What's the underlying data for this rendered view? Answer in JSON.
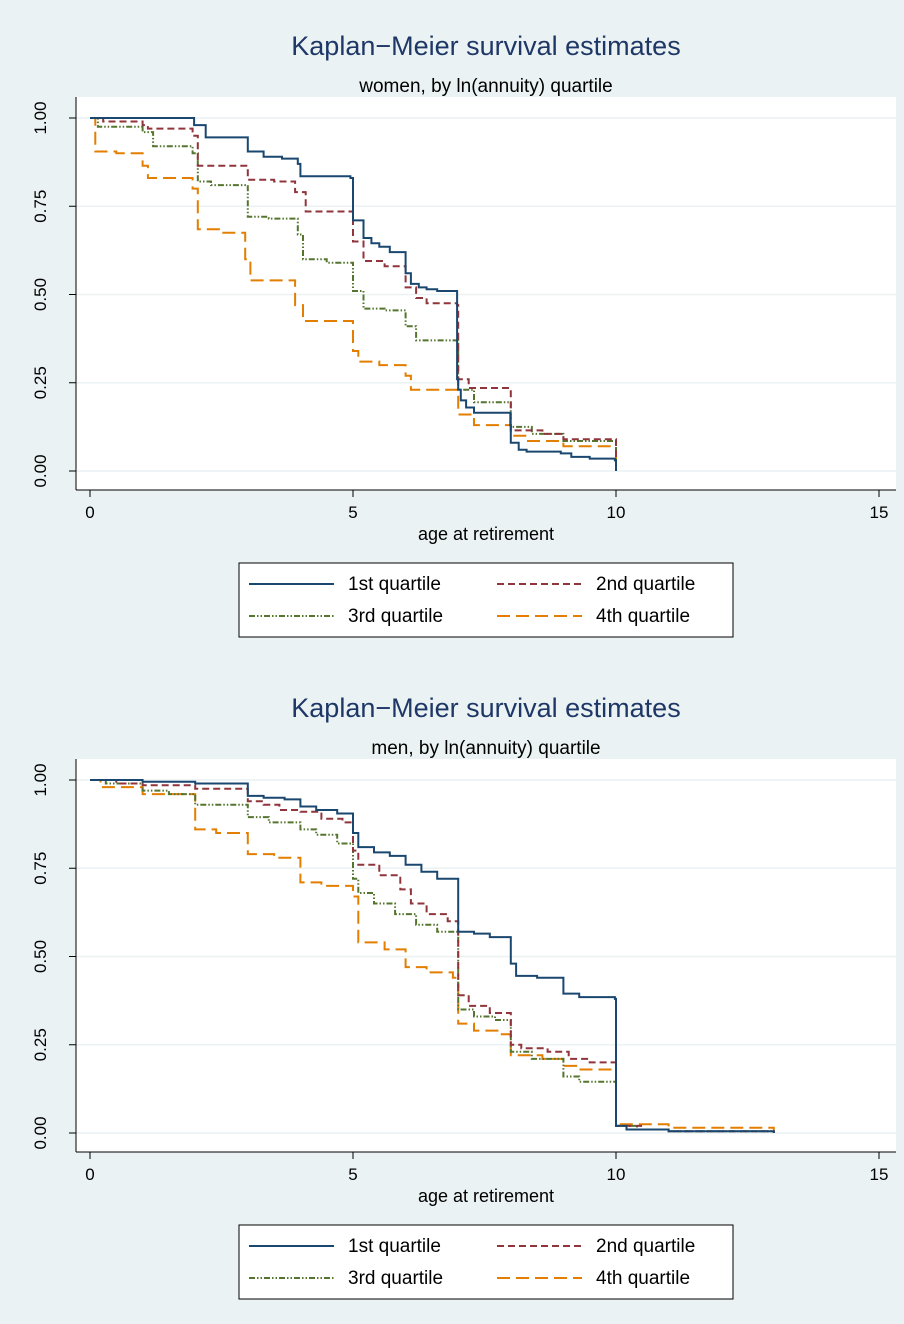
{
  "colors": {
    "background": "#eaf2f3",
    "plot_region": "#ffffff",
    "grid": "#eaf2f3",
    "title": "#1e3766",
    "text": "#000000",
    "q1": "#1a476f",
    "q2": "#90353b",
    "q3": "#55752f",
    "q4": "#e37e00"
  },
  "chart_data": [
    {
      "type": "line",
      "title": "Kaplan−Meier survival estimates",
      "subtitle": "women, by ln(annuity) quartile",
      "xlabel": "age at retirement",
      "ylabel": "",
      "xlim": [
        0,
        15
      ],
      "ylim": [
        0,
        1
      ],
      "xticks": [
        "0",
        "5",
        "10",
        "15"
      ],
      "yticks": [
        "0.00",
        "0.25",
        "0.50",
        "0.75",
        "1.00"
      ],
      "grid": true,
      "legend": "bottom",
      "step": true,
      "series": [
        {
          "name": "1st quartile",
          "x": [
            0,
            1.98,
            2.2,
            3,
            3.3,
            3.65,
            3.95,
            4,
            4.95,
            5,
            5.2,
            5.35,
            5.5,
            5.7,
            6,
            6.1,
            6.25,
            6.4,
            6.6,
            6.98,
            7,
            7.05,
            7.15,
            7.3,
            7.99,
            8,
            8.15,
            8.3,
            8.95,
            9.15,
            9.5,
            9.98,
            10
          ],
          "y": [
            1,
            0.98,
            0.945,
            0.905,
            0.89,
            0.885,
            0.87,
            0.835,
            0.83,
            0.71,
            0.66,
            0.645,
            0.635,
            0.62,
            0.56,
            0.53,
            0.52,
            0.515,
            0.51,
            0.26,
            0.23,
            0.2,
            0.18,
            0.165,
            0.13,
            0.08,
            0.06,
            0.055,
            0.05,
            0.04,
            0.035,
            0.03,
            0
          ]
        },
        {
          "name": "2nd quartile",
          "x": [
            0,
            0.25,
            1,
            1.1,
            1.95,
            2.05,
            3,
            3.5,
            3.9,
            4.1,
            5,
            5.2,
            5.6,
            6,
            6.2,
            6.4,
            6.98,
            7,
            7.2,
            8,
            8.6,
            9,
            10
          ],
          "y": [
            1,
            0.99,
            0.98,
            0.97,
            0.95,
            0.865,
            0.825,
            0.82,
            0.79,
            0.735,
            0.65,
            0.595,
            0.58,
            0.52,
            0.49,
            0.475,
            0.47,
            0.26,
            0.235,
            0.115,
            0.105,
            0.09,
            0
          ]
        },
        {
          "name": "3rd quartile",
          "x": [
            0,
            0.15,
            1,
            1.2,
            1.95,
            2.05,
            2.3,
            3,
            3.4,
            3.95,
            4.05,
            4.5,
            5,
            5.2,
            5.6,
            6,
            6.2,
            7,
            7.3,
            8,
            8.4,
            9,
            10
          ],
          "y": [
            1,
            0.975,
            0.96,
            0.92,
            0.9,
            0.82,
            0.81,
            0.72,
            0.715,
            0.67,
            0.6,
            0.59,
            0.51,
            0.46,
            0.455,
            0.41,
            0.37,
            0.23,
            0.195,
            0.125,
            0.105,
            0.085,
            0
          ]
        },
        {
          "name": "4th quartile",
          "x": [
            0,
            0.1,
            0.5,
            1,
            1.1,
            1.95,
            2.05,
            2.5,
            2.95,
            3.05,
            3.9,
            4.05,
            5,
            5.1,
            5.5,
            6,
            6.1,
            7,
            7.3,
            8,
            8.3,
            9,
            10
          ],
          "y": [
            1,
            0.905,
            0.9,
            0.865,
            0.83,
            0.8,
            0.685,
            0.675,
            0.6,
            0.54,
            0.47,
            0.425,
            0.34,
            0.31,
            0.3,
            0.27,
            0.23,
            0.16,
            0.13,
            0.1,
            0.085,
            0.07,
            0
          ]
        }
      ]
    },
    {
      "type": "line",
      "title": "Kaplan−Meier survival estimates",
      "subtitle": "men, by ln(annuity) quartile",
      "xlabel": "age at retirement",
      "ylabel": "",
      "xlim": [
        0,
        15
      ],
      "ylim": [
        0,
        1
      ],
      "xticks": [
        "0",
        "5",
        "10",
        "15"
      ],
      "yticks": [
        "0.00",
        "0.25",
        "0.50",
        "0.75",
        "1.00"
      ],
      "grid": true,
      "legend": "bottom",
      "step": true,
      "series": [
        {
          "name": "1st quartile",
          "x": [
            0,
            1,
            2,
            3,
            3.3,
            3.7,
            4,
            4.3,
            4.7,
            5,
            5.1,
            5.4,
            5.7,
            6,
            6.3,
            6.6,
            7,
            7.3,
            7.6,
            8,
            8.1,
            8.5,
            9,
            9.3,
            9.98,
            10,
            10.2,
            11,
            13
          ],
          "y": [
            1,
            0.995,
            0.99,
            0.955,
            0.95,
            0.945,
            0.925,
            0.915,
            0.905,
            0.85,
            0.81,
            0.795,
            0.785,
            0.76,
            0.74,
            0.72,
            0.57,
            0.565,
            0.555,
            0.48,
            0.445,
            0.44,
            0.395,
            0.385,
            0.38,
            0.02,
            0.01,
            0.005,
            0
          ]
        },
        {
          "name": "2nd quartile",
          "x": [
            0,
            0.5,
            1,
            2,
            3,
            3.3,
            3.6,
            4,
            4.4,
            4.8,
            5,
            5.1,
            5.5,
            5.9,
            6.1,
            6.4,
            6.8,
            7,
            7.2,
            7.6,
            8,
            8.2,
            8.7,
            9.1,
            9.5,
            10,
            10.5,
            11,
            13
          ],
          "y": [
            1,
            0.99,
            0.985,
            0.975,
            0.94,
            0.93,
            0.915,
            0.91,
            0.89,
            0.88,
            0.8,
            0.76,
            0.73,
            0.69,
            0.65,
            0.62,
            0.6,
            0.39,
            0.36,
            0.34,
            0.25,
            0.24,
            0.23,
            0.21,
            0.2,
            0.02,
            0.01,
            0.005,
            0
          ]
        },
        {
          "name": "3rd quartile",
          "x": [
            0,
            0.3,
            1,
            1.5,
            2,
            3,
            3.4,
            4,
            4.3,
            4.7,
            5,
            5.1,
            5.4,
            5.8,
            6.2,
            6.6,
            7,
            7.3,
            7.7,
            8,
            8.4,
            9,
            9.3,
            10,
            10.4,
            11,
            13
          ],
          "y": [
            1,
            0.99,
            0.97,
            0.96,
            0.93,
            0.895,
            0.88,
            0.86,
            0.845,
            0.82,
            0.72,
            0.68,
            0.65,
            0.62,
            0.59,
            0.57,
            0.35,
            0.33,
            0.32,
            0.23,
            0.21,
            0.16,
            0.145,
            0.02,
            0.01,
            0.005,
            0
          ]
        },
        {
          "name": "4th quartile",
          "x": [
            0,
            0.2,
            1,
            2,
            2.4,
            3,
            3.5,
            4,
            4.4,
            5,
            5.1,
            5.6,
            6,
            6.4,
            6.9,
            7,
            7.3,
            7.8,
            8,
            8.6,
            9,
            9.3,
            10,
            11,
            13
          ],
          "y": [
            1,
            0.98,
            0.96,
            0.86,
            0.85,
            0.79,
            0.78,
            0.71,
            0.7,
            0.67,
            0.54,
            0.52,
            0.47,
            0.455,
            0.44,
            0.31,
            0.29,
            0.28,
            0.22,
            0.21,
            0.19,
            0.18,
            0.025,
            0.015,
            0
          ]
        }
      ]
    }
  ]
}
